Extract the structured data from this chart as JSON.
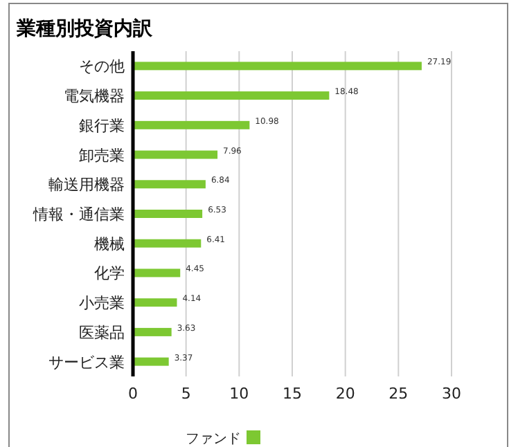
{
  "chart_data": {
    "type": "bar",
    "orientation": "horizontal",
    "title": "業種別投資内訳",
    "categories": [
      "その他",
      "電気機器",
      "銀行業",
      "卸売業",
      "輸送用機器",
      "情報・通信業",
      "機械",
      "化学",
      "小売業",
      "医薬品",
      "サービス業"
    ],
    "series": [
      {
        "name": "ファンド",
        "color": "#7dc832",
        "values": [
          27.19,
          18.48,
          10.98,
          7.96,
          6.84,
          6.53,
          6.41,
          4.45,
          4.14,
          3.63,
          3.37
        ]
      }
    ],
    "xlim": [
      0,
      30
    ],
    "xticks": [
      0,
      5,
      10,
      15,
      20,
      25,
      30
    ],
    "grid": "x",
    "data_labels": true,
    "legend": "bottom"
  }
}
